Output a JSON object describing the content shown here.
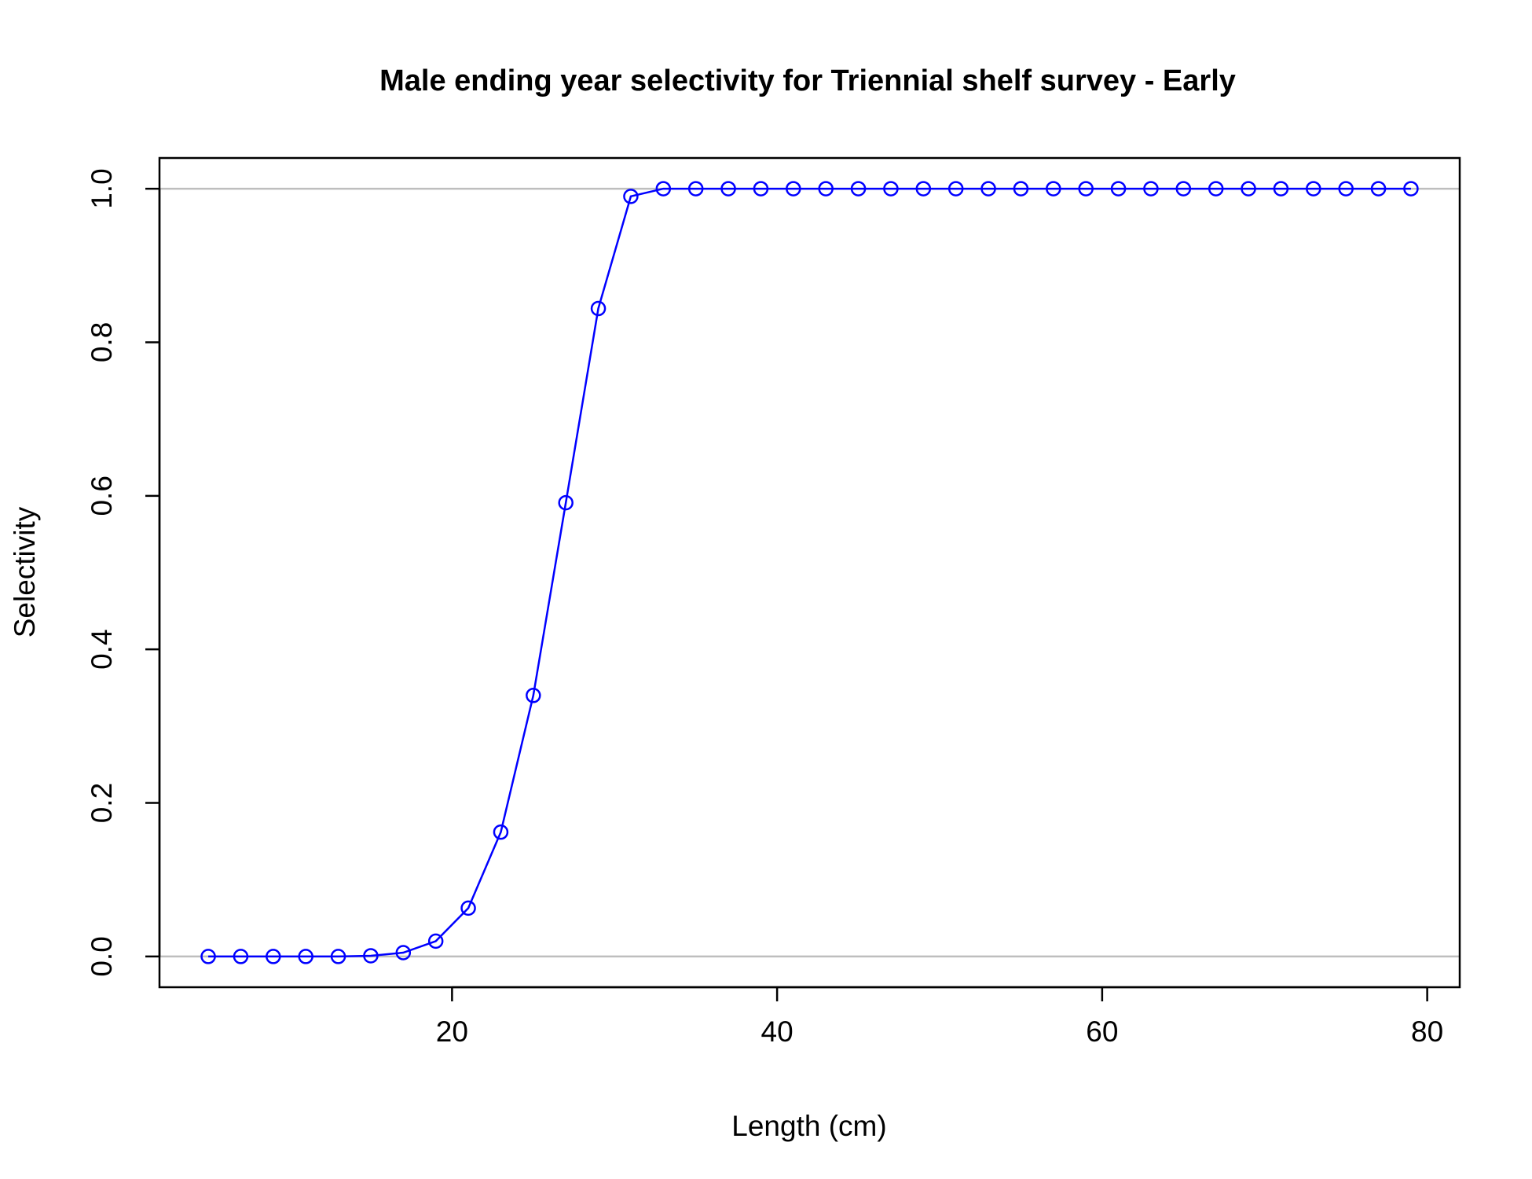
{
  "chart_data": {
    "type": "line",
    "title": "Male ending year selectivity for Triennial shelf survey - Early",
    "xlabel": "Length (cm)",
    "ylabel": "Selectivity",
    "xlim": [
      2,
      82
    ],
    "ylim": [
      -0.04,
      1.04
    ],
    "x_ticks": [
      20,
      40,
      60,
      80
    ],
    "x_tick_labels": [
      "20",
      "40",
      "60",
      "80"
    ],
    "y_ticks": [
      0.0,
      0.2,
      0.4,
      0.6,
      0.8,
      1.0
    ],
    "y_tick_labels": [
      "0.0",
      "0.2",
      "0.4",
      "0.6",
      "0.8",
      "1.0"
    ],
    "reference_lines": [
      0.0,
      1.0
    ],
    "grid": false,
    "legend": "none",
    "colors": {
      "series": "#0000ff",
      "reference_line": "#bebebe",
      "axes": "#000000"
    },
    "series": [
      {
        "marker": "open-circle",
        "x": [
          5,
          7,
          9,
          11,
          13,
          15,
          17,
          19,
          21,
          23,
          25,
          27,
          29,
          31,
          33,
          35,
          37,
          39,
          41,
          43,
          45,
          47,
          49,
          51,
          53,
          55,
          57,
          59,
          61,
          63,
          65,
          67,
          69,
          71,
          73,
          75,
          77,
          79
        ],
        "values": [
          0.0,
          0.0,
          0.0,
          0.0,
          0.0,
          0.001,
          0.005,
          0.02,
          0.063,
          0.162,
          0.34,
          0.591,
          0.844,
          0.99,
          1.0,
          1.0,
          1.0,
          1.0,
          1.0,
          1.0,
          1.0,
          1.0,
          1.0,
          1.0,
          1.0,
          1.0,
          1.0,
          1.0,
          1.0,
          1.0,
          1.0,
          1.0,
          1.0,
          1.0,
          1.0,
          1.0,
          1.0,
          1.0
        ]
      }
    ]
  }
}
